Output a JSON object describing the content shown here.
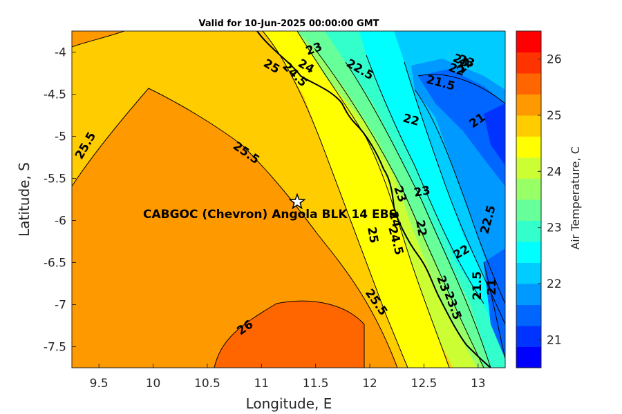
{
  "title": "Valid for 10-Jun-2025 00:00:00 GMT",
  "xlabel": "Longitude, E",
  "ylabel": "Latitude, S",
  "xticks": [
    "9.5",
    "10",
    "10.5",
    "11",
    "11.5",
    "12",
    "12.5",
    "13"
  ],
  "yticks": [
    "-4",
    "-4.5",
    "-5",
    "-5.5",
    "-6",
    "-6.5",
    "-7",
    "-7.5"
  ],
  "colorbar": {
    "title": "Air Temperature, C",
    "ticks": [
      "21",
      "22",
      "23",
      "24",
      "25",
      "26"
    ],
    "colors": [
      "#0000ff",
      "#0033ff",
      "#0066ff",
      "#0099ff",
      "#00ccff",
      "#00ffff",
      "#33ffcc",
      "#66ff99",
      "#99ff66",
      "#ccff33",
      "#ffff00",
      "#ffcc00",
      "#ff9900",
      "#ff6600",
      "#ff3300",
      "#ff0000"
    ]
  },
  "site": {
    "label": "CABGOC (Chevron)  Angola BLK 14  EBS",
    "lon": 11.33,
    "lat": -5.78,
    "marker": "star-icon"
  },
  "contour_labels": [
    {
      "text": "25.5"
    },
    {
      "text": "25.5"
    },
    {
      "text": "26"
    },
    {
      "text": "25.5"
    },
    {
      "text": "25"
    },
    {
      "text": "25"
    },
    {
      "text": "24.5"
    },
    {
      "text": "24"
    },
    {
      "text": "23"
    },
    {
      "text": "22.5"
    },
    {
      "text": "22"
    },
    {
      "text": "21.5"
    },
    {
      "text": "21"
    },
    {
      "text": "23"
    },
    {
      "text": "22"
    },
    {
      "text": "22"
    },
    {
      "text": "22.5"
    },
    {
      "text": "21.5"
    },
    {
      "text": "21"
    },
    {
      "text": "23"
    },
    {
      "text": "24"
    },
    {
      "text": "24.5"
    },
    {
      "text": "23"
    },
    {
      "text": "23.5"
    },
    {
      "text": "23"
    },
    {
      "text": "22"
    },
    {
      "text": "22"
    },
    {
      "text": "23"
    }
  ],
  "chart_data": {
    "type": "contourf",
    "x_range": [
      9.25,
      13.25
    ],
    "y_range": [
      -7.75,
      -3.75
    ],
    "color_range": [
      20.5,
      26.5
    ],
    "level_step": 0.5
  }
}
